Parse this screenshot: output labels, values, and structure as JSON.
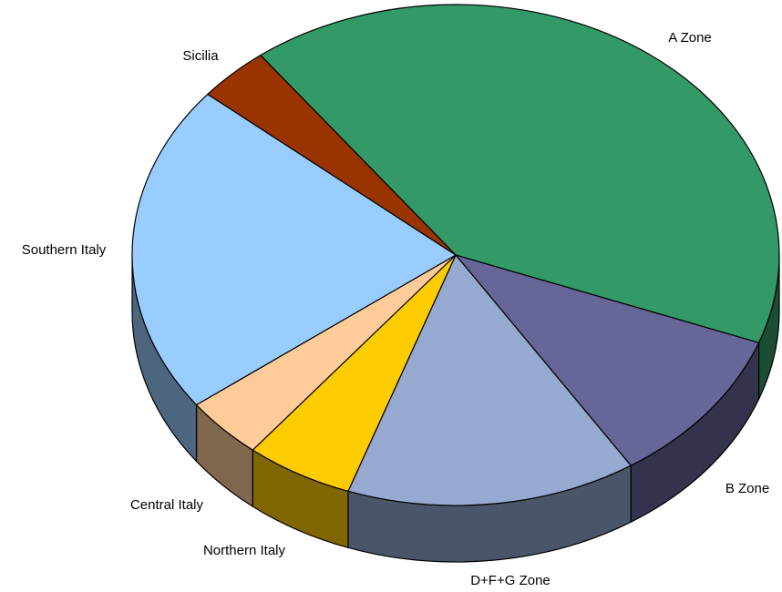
{
  "chart_data": {
    "type": "pie3d",
    "categories": [
      "A Zone",
      "B Zone",
      "D+F+G Zone",
      "Northern Italy",
      "Central Italy",
      "Southern Italy",
      "Sicilia"
    ],
    "values": [
      41,
      10.2,
      14.5,
      5.4,
      4.0,
      21.3,
      3.6
    ],
    "colors": [
      "#339966",
      "#666699",
      "#96a9d1",
      "#ffcc00",
      "#ffcc99",
      "#99ccff",
      "#993300"
    ]
  }
}
